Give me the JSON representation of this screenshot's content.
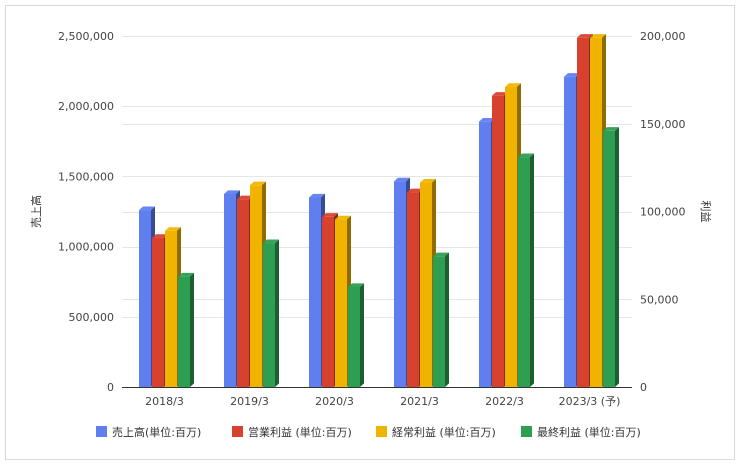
{
  "chart_data": {
    "type": "bar",
    "categories": [
      "2018/3",
      "2019/3",
      "2020/3",
      "2021/3",
      "2022/3",
      "2023/3 (予)"
    ],
    "series": [
      {
        "name": "売上高(単位:百万)",
        "axis": "left",
        "color": "#5f7ff0",
        "values": [
          1260000,
          1375000,
          1350000,
          1465000,
          1890000,
          2210000
        ]
      },
      {
        "name": "営業利益 (単位:百万)",
        "axis": "right",
        "color": "#d9412f",
        "values": [
          85000,
          107000,
          97000,
          111000,
          166000,
          199000
        ]
      },
      {
        "name": "経常利益 (単位:百万)",
        "axis": "right",
        "color": "#f0b400",
        "values": [
          89000,
          115000,
          95500,
          116500,
          171000,
          199000
        ]
      },
      {
        "name": "最終利益 (単位:百万)",
        "axis": "right",
        "color": "#2e9e52",
        "values": [
          63000,
          82000,
          57000,
          74500,
          131000,
          146000
        ]
      }
    ],
    "y_left": {
      "label": "売上高",
      "min": 0,
      "max": 2500000,
      "ticks": [
        "0",
        "500,000",
        "1,000,000",
        "1,500,000",
        "2,000,000",
        "2,500,000"
      ]
    },
    "y_right": {
      "label": "利益",
      "min": 0,
      "max": 200000,
      "ticks": [
        "0",
        "50,000",
        "100,000",
        "150,000",
        "200,000"
      ]
    },
    "grid": true,
    "legend_position": "bottom"
  }
}
